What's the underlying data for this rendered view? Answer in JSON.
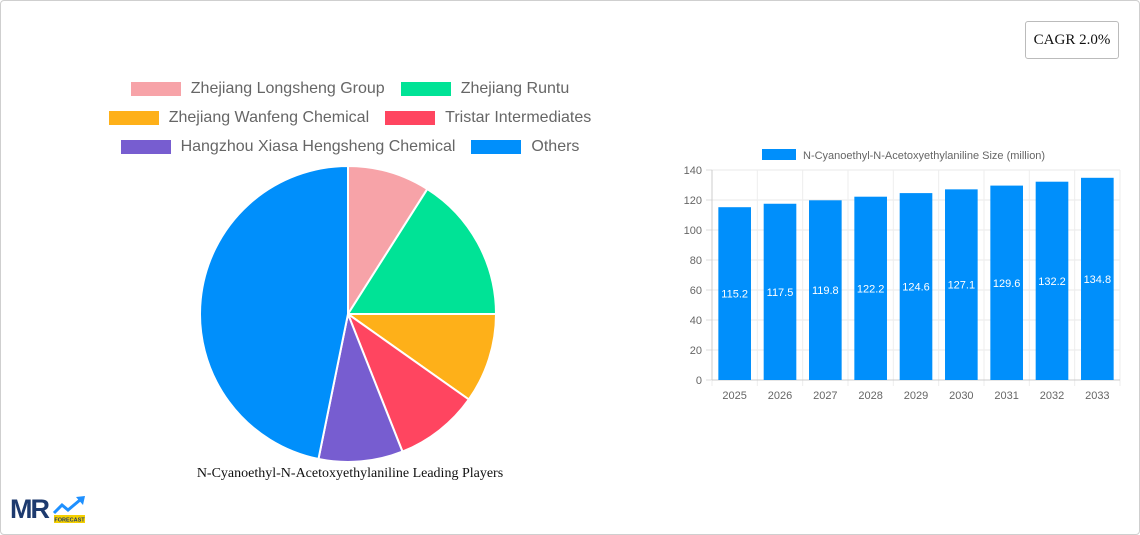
{
  "cagr": {
    "label": "CAGR 2.0%"
  },
  "pie": {
    "title": "N-Cyanoethyl-N-Acetoxyethylaniline Leading Players"
  },
  "legend": [
    {
      "label": "Zhejiang Longsheng Group",
      "color": "#f7a3a8"
    },
    {
      "label": "Zhejiang Runtu",
      "color": "#00e396"
    },
    {
      "label": "Zhejiang Wanfeng Chemical",
      "color": "#feb019"
    },
    {
      "label": "Tristar Intermediates",
      "color": "#ff4560"
    },
    {
      "label": "Hangzhou Xiasa Hengsheng Chemical",
      "color": "#775dd0"
    },
    {
      "label": "Others",
      "color": "#008ffb"
    }
  ],
  "bar": {
    "legend_label": "N-Cyanoethyl-N-Acetoxyethylaniline Size (million)",
    "color": "#008ffb"
  },
  "logo": {
    "text": "MR",
    "sub": "FORECAST"
  },
  "chart_data": [
    {
      "type": "pie",
      "title": "N-Cyanoethyl-N-Acetoxyethylaniline Leading Players",
      "categories": [
        "Zhejiang Longsheng Group",
        "Zhejiang Runtu",
        "Zhejiang Wanfeng Chemical",
        "Tristar Intermediates",
        "Hangzhou Xiasa Hengsheng Chemical",
        "Others"
      ],
      "values": [
        9.0,
        16.0,
        9.8,
        9.2,
        9.2,
        46.8
      ],
      "colors": [
        "#f7a3a8",
        "#00e396",
        "#feb019",
        "#ff4560",
        "#775dd0",
        "#008ffb"
      ],
      "legend_position": "top"
    },
    {
      "type": "bar",
      "title": "",
      "series": [
        {
          "name": "N-Cyanoethyl-N-Acetoxyethylaniline Size (million)",
          "values": [
            115.2,
            117.5,
            119.8,
            122.2,
            124.6,
            127.1,
            129.6,
            132.2,
            134.8
          ]
        }
      ],
      "categories": [
        "2025",
        "2026",
        "2027",
        "2028",
        "2029",
        "2030",
        "2031",
        "2032",
        "2033"
      ],
      "xlabel": "",
      "ylabel": "",
      "ylim": [
        0,
        140
      ],
      "yticks": [
        0,
        20,
        40,
        60,
        80,
        100,
        120,
        140
      ],
      "grid": true,
      "legend_position": "top",
      "data_labels": true
    }
  ]
}
